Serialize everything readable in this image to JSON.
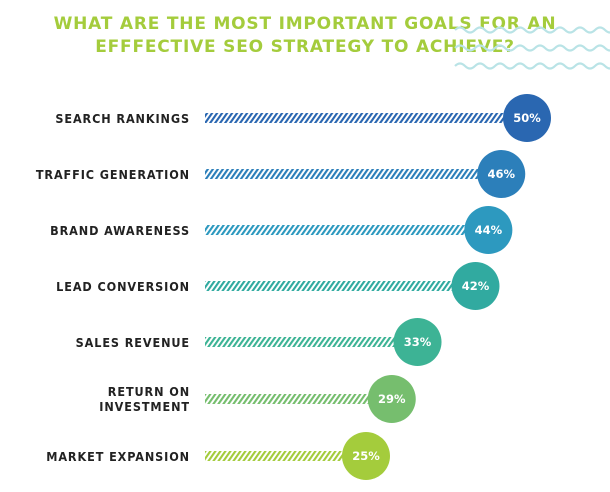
{
  "title_line1": "WHAT ARE THE MOST IMPORTANT GOALS FOR AN",
  "title_line2": "EFFFECTIVE SEO STRATEGY TO ACHIEVE?",
  "chart_data": {
    "type": "bar",
    "orientation": "horizontal",
    "categories": [
      "SEARCH RANKINGS",
      "TRAFFIC GENERATION",
      "BRAND AWARENESS",
      "LEAD CONVERSION",
      "SALES REVENUE",
      "RETURN ON\nINVESTMENT",
      "MARKET EXPANSION"
    ],
    "values": [
      50,
      46,
      44,
      42,
      33,
      29,
      25
    ],
    "value_labels": [
      "50%",
      "46%",
      "44%",
      "42%",
      "33%",
      "29%",
      "25%"
    ],
    "unit": "%",
    "colors": [
      "#2a67b1",
      "#2c7fba",
      "#2d99bf",
      "#31aaa0",
      "#3db395",
      "#76be6e",
      "#a4cc3c"
    ],
    "title_color": "#a4cc3c",
    "wave_color": "#b9e3e6"
  }
}
